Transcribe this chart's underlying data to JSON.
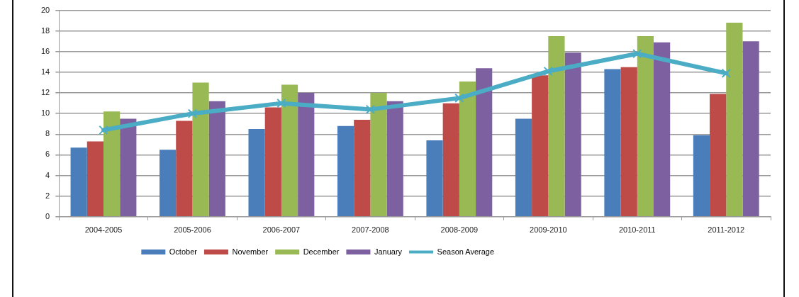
{
  "chart_data": {
    "type": "bar",
    "categories": [
      "2004-2005",
      "2005-2006",
      "2006-2007",
      "2007-2008",
      "2008-2009",
      "2009-2010",
      "2010-2011",
      "2011-2012"
    ],
    "series": [
      {
        "name": "October",
        "color": "#4a7ebb",
        "values": [
          6.7,
          6.5,
          8.5,
          8.8,
          7.4,
          9.5,
          14.3,
          7.9
        ]
      },
      {
        "name": "November",
        "color": "#be4b48",
        "values": [
          7.3,
          9.3,
          10.6,
          9.4,
          11.0,
          13.7,
          14.5,
          11.9
        ]
      },
      {
        "name": "December",
        "color": "#98b954",
        "values": [
          10.2,
          13.0,
          12.8,
          12.0,
          13.1,
          17.5,
          17.5,
          18.8
        ]
      },
      {
        "name": "January",
        "color": "#7d60a0",
        "values": [
          9.5,
          11.2,
          12.0,
          11.2,
          14.4,
          15.9,
          16.9,
          17.0
        ]
      },
      {
        "name": "Season Average",
        "type": "line",
        "color": "#4bacc6",
        "values": [
          8.4,
          10.0,
          11.0,
          10.4,
          11.5,
          14.1,
          15.8,
          13.9
        ]
      }
    ],
    "ylim": [
      0,
      20
    ],
    "yticks": [
      0,
      2,
      4,
      6,
      8,
      10,
      12,
      14,
      16,
      18,
      20
    ],
    "grid": "y",
    "legend": "bottom",
    "marker": "cross"
  }
}
